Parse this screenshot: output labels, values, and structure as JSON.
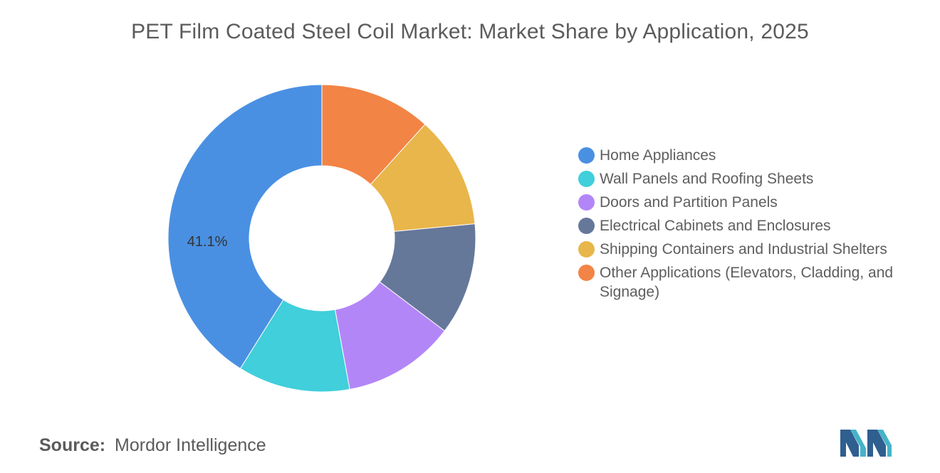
{
  "title": "PET Film Coated Steel Coil Market: Market Share by Application, 2025",
  "source": {
    "label": "Source:",
    "name": "Mordor Intelligence"
  },
  "chart_data": {
    "type": "pie",
    "title": "PET Film Coated Steel Coil Market: Market Share by Application, 2025",
    "donut": true,
    "legend_position": "right",
    "categories": [
      "Home Appliances",
      "Wall Panels and Roofing Sheets",
      "Doors and Partition Panels",
      "Electrical Cabinets and Enclosures",
      "Shipping Containers and Industrial Shelters",
      "Other Applications (Elevators, Cladding, and Signage)"
    ],
    "values": [
      41.1,
      11.8,
      11.8,
      11.8,
      11.8,
      11.7
    ],
    "colors": [
      "#4a90e2",
      "#40cfdb",
      "#b386f7",
      "#66789a",
      "#e8b64a",
      "#f28445"
    ],
    "data_labels": [
      "41.1%",
      "",
      "",
      "",
      "",
      ""
    ]
  }
}
